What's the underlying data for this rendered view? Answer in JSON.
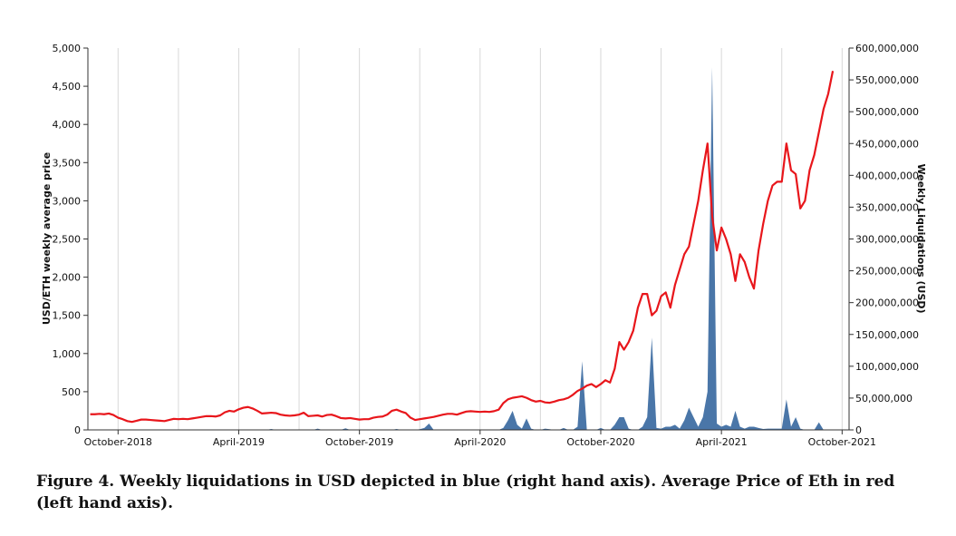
{
  "caption": "Figure 4. Weekly liquidations in USD depicted in blue (right hand axis). Average Price of Eth in red (left hand axis).",
  "chart_data": {
    "type": "line",
    "title": "",
    "xlabel": "",
    "ylabel": "USD/ETH weekly average price",
    "y2label": "Weekly Liquidations (USD)",
    "ylim": [
      0,
      5000
    ],
    "y2lim": [
      0,
      600000000
    ],
    "yticks": [
      "0",
      "500",
      "1,000",
      "1,500",
      "2,000",
      "2,500",
      "3,000",
      "3,500",
      "4,000",
      "4,500",
      "5,000"
    ],
    "y2ticks": [
      "0",
      "50,000,000",
      "100,000,000",
      "150,000,000",
      "200,000,000",
      "250,000,000",
      "300,000,000",
      "350,000,000",
      "400,000,000",
      "450,000,000",
      "500,000,000",
      "550,000,000",
      "600,000,000"
    ],
    "xticks": [
      {
        "label": "October-2018",
        "week": 6
      },
      {
        "label": "April-2019",
        "week": 32
      },
      {
        "label": "October-2019",
        "week": 58
      },
      {
        "label": "April-2020",
        "week": 84
      },
      {
        "label": "October-2020",
        "week": 110
      },
      {
        "label": "April-2021",
        "week": 136
      },
      {
        "label": "October-2021",
        "week": 162
      }
    ],
    "xlim": [
      -0.5,
      163.5
    ],
    "colors": {
      "price": "#e8161b",
      "liquidations": "#4a76a8",
      "grid": "#d8d8d8"
    },
    "series": [
      {
        "name": "USD/ETH weekly average price",
        "axis": "left",
        "values": [
          205,
          205,
          210,
          205,
          215,
          195,
          160,
          140,
          115,
          105,
          120,
          135,
          135,
          130,
          125,
          120,
          115,
          130,
          145,
          140,
          145,
          140,
          150,
          160,
          170,
          180,
          180,
          175,
          190,
          230,
          250,
          240,
          270,
          290,
          300,
          280,
          250,
          215,
          220,
          225,
          220,
          200,
          190,
          185,
          190,
          200,
          225,
          180,
          185,
          190,
          175,
          195,
          200,
          180,
          155,
          150,
          155,
          145,
          135,
          140,
          140,
          160,
          170,
          175,
          200,
          250,
          265,
          240,
          220,
          160,
          130,
          140,
          150,
          160,
          170,
          185,
          200,
          210,
          210,
          200,
          220,
          240,
          245,
          240,
          235,
          240,
          235,
          245,
          265,
          350,
          400,
          420,
          430,
          440,
          420,
          390,
          370,
          380,
          360,
          355,
          370,
          390,
          400,
          420,
          460,
          510,
          540,
          580,
          600,
          560,
          600,
          650,
          620,
          800,
          1150,
          1050,
          1150,
          1300,
          1600,
          1780,
          1780,
          1500,
          1560,
          1750,
          1800,
          1600,
          1900,
          2100,
          2300,
          2400,
          2700,
          3000,
          3400,
          3750,
          2800,
          2350,
          2650,
          2500,
          2300,
          1950,
          2300,
          2200,
          2000,
          1850,
          2350,
          2700,
          3000,
          3200,
          3250,
          3250,
          3750,
          3400,
          3350,
          2900,
          3000,
          3400,
          3600,
          3900,
          4200,
          4400,
          4700
        ]
      },
      {
        "name": "Weekly Liquidations (USD)",
        "axis": "right",
        "values": [
          0,
          0,
          0,
          0,
          0,
          0,
          0,
          0,
          0,
          0,
          0,
          0,
          0,
          0,
          0,
          0,
          0,
          0,
          0,
          0,
          0,
          0,
          0,
          0,
          0,
          0,
          0,
          0,
          0,
          0,
          0,
          0,
          0,
          0,
          0,
          0,
          0,
          0,
          0,
          1500000,
          0,
          0,
          0,
          0,
          0,
          0,
          0,
          0,
          0,
          2000000,
          0,
          0,
          0,
          0,
          0,
          2500000,
          0,
          0,
          0,
          0,
          0,
          0,
          0,
          0,
          0,
          0,
          1500000,
          0,
          0,
          0,
          0,
          1000000,
          3000000,
          10000000,
          0,
          0,
          0,
          0,
          0,
          0,
          0,
          0,
          0,
          0,
          0,
          0,
          0,
          0,
          0,
          3000000,
          15000000,
          30000000,
          8000000,
          2000000,
          18000000,
          2000000,
          0,
          0,
          2000000,
          1000000,
          0,
          0,
          3000000,
          0,
          0,
          5000000,
          108000000,
          0,
          0,
          0,
          3000000,
          0,
          0,
          8000000,
          20000000,
          20000000,
          2000000,
          0,
          0,
          5000000,
          20000000,
          145000000,
          3000000,
          2000000,
          5000000,
          5000000,
          8000000,
          2000000,
          15000000,
          35000000,
          20000000,
          5000000,
          20000000,
          60000000,
          570000000,
          10000000,
          5000000,
          8000000,
          5000000,
          30000000,
          5000000,
          2000000,
          5000000,
          5000000,
          3000000,
          1500000,
          2000000,
          2000000,
          2000000,
          2000000,
          48000000,
          5000000,
          20000000,
          2000000,
          0,
          0,
          0,
          12000000,
          0,
          0
        ]
      }
    ]
  }
}
